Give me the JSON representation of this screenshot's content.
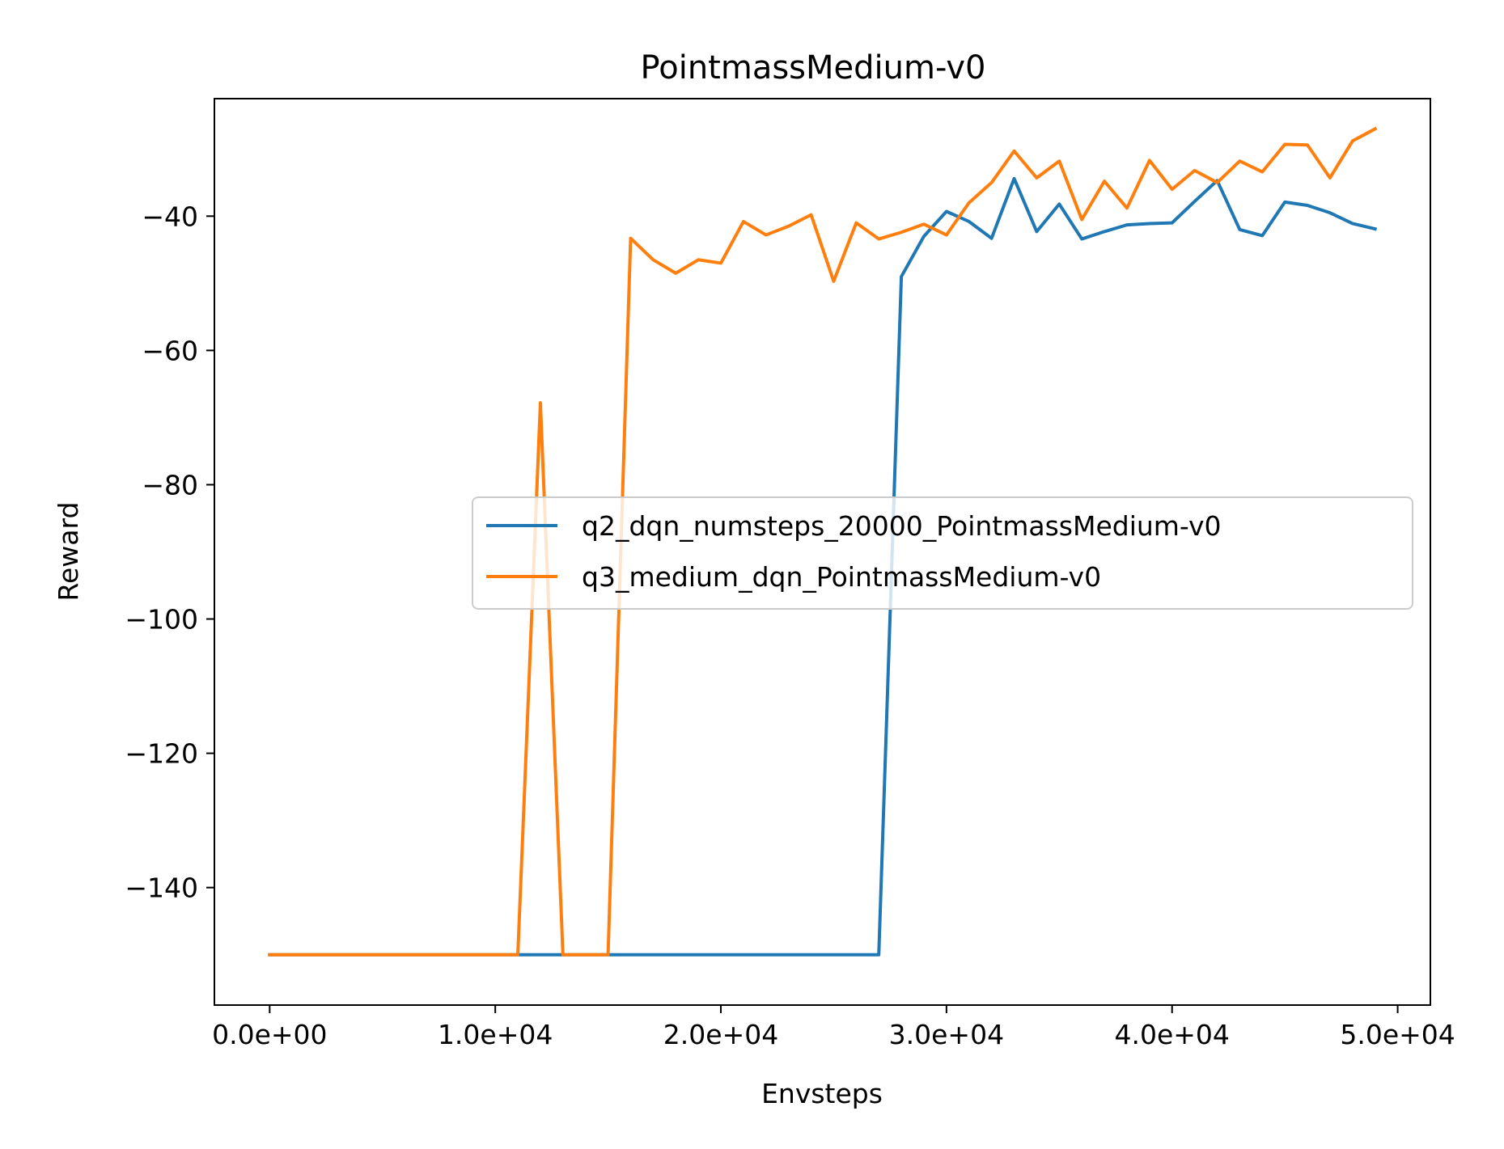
{
  "chart_data": {
    "type": "line",
    "title": "PointmassMedium-v0",
    "xlabel": "Envsteps",
    "ylabel": "Reward",
    "xlim": [
      -2450,
      51450
    ],
    "ylim": [
      -157.5,
      -22.5
    ],
    "xticks": [
      0,
      10000,
      20000,
      30000,
      40000,
      50000
    ],
    "xtick_labels": [
      "0.0e+00",
      "1.0e+04",
      "2.0e+04",
      "3.0e+04",
      "4.0e+04",
      "5.0e+04"
    ],
    "yticks": [
      -140,
      -120,
      -100,
      -80,
      -60,
      -40
    ],
    "ytick_labels": [
      "−140",
      "−120",
      "−100",
      "−80",
      "−60",
      "−40"
    ],
    "grid": false,
    "legend_position": "center-right",
    "x": [
      0,
      1000,
      2000,
      3000,
      4000,
      5000,
      6000,
      7000,
      8000,
      9000,
      10000,
      11000,
      12000,
      13000,
      14000,
      15000,
      16000,
      17000,
      18000,
      19000,
      20000,
      21000,
      22000,
      23000,
      24000,
      25000,
      26000,
      27000,
      28000,
      29000,
      30000,
      31000,
      32000,
      33000,
      34000,
      35000,
      36000,
      37000,
      38000,
      39000,
      40000,
      41000,
      42000,
      43000,
      44000,
      45000,
      46000,
      47000,
      48000,
      49000
    ],
    "series": [
      {
        "name": "q2_dqn_numsteps_20000_PointmassMedium-v0",
        "color": "#1f77b4",
        "values": [
          -150,
          -150,
          -150,
          -150,
          -150,
          -150,
          -150,
          -150,
          -150,
          -150,
          -150,
          -150,
          -150,
          -150,
          -150,
          -150,
          -150,
          -150,
          -150,
          -150,
          -150,
          -150,
          -150,
          -150,
          -150,
          -150,
          -150,
          -150,
          -49,
          -43,
          -39.3,
          -40.8,
          -43.3,
          -34.4,
          -42.3,
          -38.2,
          -43.4,
          -42.3,
          -41.3,
          -41.1,
          -41.0,
          -37.8,
          -34.7,
          -42.0,
          -42.9,
          -37.9,
          -38.4,
          -39.5,
          -41.1,
          -41.9
        ]
      },
      {
        "name": "q3_medium_dqn_PointmassMedium-v0",
        "color": "#ff7f0e",
        "values": [
          -150,
          -150,
          -150,
          -150,
          -150,
          -150,
          -150,
          -150,
          -150,
          -150,
          -150,
          -150,
          -67.8,
          -150,
          -150,
          -150,
          -43.3,
          -46.5,
          -48.5,
          -46.5,
          -47.0,
          -40.8,
          -42.8,
          -41.5,
          -39.8,
          -49.7,
          -41.0,
          -43.4,
          -42.4,
          -41.2,
          -42.8,
          -38.0,
          -35.0,
          -30.3,
          -34.3,
          -31.8,
          -40.5,
          -34.8,
          -38.8,
          -31.7,
          -36.0,
          -33.2,
          -35.0,
          -31.8,
          -33.4,
          -29.3,
          -29.4,
          -34.3,
          -28.8,
          -27.0
        ]
      }
    ]
  }
}
